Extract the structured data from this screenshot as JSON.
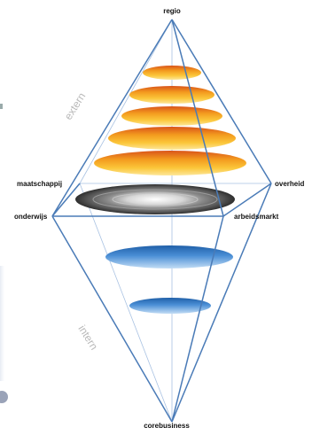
{
  "labels": {
    "top": "regio",
    "bottom": "corebusiness",
    "left": "onderwijs",
    "right": "overheid",
    "back_left": "maatschappij",
    "front_right": "arbeidsmarkt"
  },
  "zones": {
    "upper": "extern",
    "lower": "intern"
  },
  "colors": {
    "frame": "#4a7bb7",
    "frame_light": "#9fb9db",
    "orange_top": "#d9541a",
    "orange_mid": "#f7a21b",
    "orange_bottom": "#fde48c",
    "disc_dark": "#3a3a3a",
    "disc_light": "#f4f4f4",
    "blue_dark": "#1f5fa8",
    "blue_light": "#a9cdf0"
  }
}
